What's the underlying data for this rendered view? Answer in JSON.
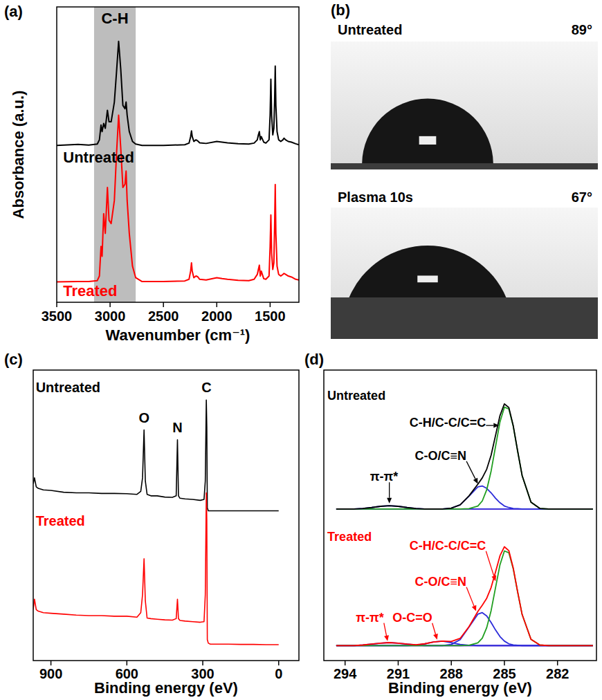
{
  "chart_data": [
    {
      "type": "line",
      "panel_label": "(a)",
      "x_label": "Wavenumber (cm⁻¹)",
      "y_label": "Absorbance (a.u.)",
      "x": [
        3500,
        3300,
        3200,
        3120,
        3100,
        3085,
        3075,
        3060,
        3045,
        3025,
        3010,
        2990,
        2960,
        2940,
        2920,
        2900,
        2880,
        2860,
        2850,
        2840,
        2820,
        2790,
        2760,
        2700,
        2500,
        2300,
        2260,
        2245,
        2237,
        2230,
        2215,
        2195,
        2180,
        2160,
        2100,
        2000,
        1950,
        1900,
        1800,
        1700,
        1650,
        1620,
        1610,
        1601,
        1592,
        1583,
        1560,
        1540,
        1510,
        1500,
        1493,
        1486,
        1475,
        1465,
        1458,
        1452,
        1446,
        1435,
        1420,
        1400,
        1380,
        1370,
        1355,
        1330,
        1300,
        1260,
        1230
      ],
      "series": [
        {
          "color": "#000000",
          "values": [
            6.28,
            6.31,
            6.29,
            6.32,
            6.45,
            6.9,
            6.7,
            6.95,
            6.8,
            7.35,
            7.0,
            7.0,
            7.6,
            8.5,
            9.45,
            8.6,
            7.5,
            7.4,
            7.6,
            7.2,
            6.7,
            6.4,
            6.32,
            6.28,
            6.28,
            6.3,
            6.35,
            6.55,
            6.72,
            6.55,
            6.4,
            6.45,
            6.42,
            6.36,
            6.34,
            6.4,
            6.38,
            6.36,
            6.33,
            6.32,
            6.35,
            6.45,
            6.6,
            6.7,
            6.45,
            6.55,
            6.38,
            6.35,
            6.45,
            7.2,
            8.3,
            7.2,
            6.6,
            6.8,
            7.6,
            8.7,
            7.5,
            6.7,
            6.45,
            6.4,
            6.45,
            6.5,
            6.45,
            6.4,
            6.38,
            6.33,
            6.3
          ]
        },
        {
          "color": "#ff0000",
          "values": [
            2.12,
            2.13,
            2.13,
            2.16,
            2.3,
            3.2,
            2.9,
            4.2,
            3.6,
            5.0,
            4.0,
            3.9,
            4.6,
            6.0,
            7.2,
            6.2,
            5.0,
            5.1,
            5.5,
            4.6,
            3.6,
            2.6,
            2.25,
            2.13,
            2.13,
            2.15,
            2.2,
            2.45,
            2.7,
            2.45,
            2.25,
            2.3,
            2.28,
            2.2,
            2.18,
            2.25,
            2.22,
            2.2,
            2.17,
            2.16,
            2.2,
            2.35,
            2.5,
            2.63,
            2.3,
            2.45,
            2.22,
            2.2,
            2.3,
            3.2,
            4.16,
            3.0,
            2.5,
            2.7,
            3.8,
            5.09,
            3.6,
            2.6,
            2.35,
            2.3,
            2.35,
            2.38,
            2.35,
            2.3,
            2.27,
            2.2,
            2.18
          ]
        }
      ],
      "xlim": [
        3500,
        1230
      ],
      "xticks": [
        3500,
        3000,
        2500,
        2000,
        1500
      ],
      "ylim": [
        1.5,
        10.5
      ],
      "tick_labels": "x",
      "highlight": {
        "from": 3150,
        "to": 2760,
        "label": "C-H"
      },
      "annotations": [
        {
          "text": "Untreated",
          "x": 3440,
          "y": 5.75,
          "color": "#000000"
        },
        {
          "text": "Treated",
          "x": 3440,
          "y": 1.68,
          "color": "#ff0000"
        }
      ]
    },
    {
      "type": "photo",
      "panel_label": "(b)",
      "images": [
        {
          "label": "Untreated",
          "contact_angle": 89,
          "contact_angle_label": "89°"
        },
        {
          "label": "Plasma 10s",
          "contact_angle": 67,
          "contact_angle_label": "67°"
        }
      ]
    },
    {
      "type": "line",
      "panel_label": "(c)",
      "x_label": "Binding energy (eV)",
      "x": [
        970,
        965,
        958,
        950,
        930,
        900,
        850,
        800,
        750,
        700,
        650,
        600,
        560,
        545,
        538,
        532,
        527,
        520,
        505,
        480,
        450,
        420,
        405,
        400,
        396,
        390,
        370,
        340,
        310,
        295,
        290,
        286,
        284,
        282,
        278,
        270,
        250,
        200,
        150,
        100,
        50,
        0
      ],
      "series": [
        {
          "color": "#000000",
          "values": [
            6.4,
            6.6,
            6.3,
            6.25,
            6.2,
            6.18,
            6.12,
            6.1,
            6.1,
            6.08,
            6.08,
            6.07,
            6.05,
            6.15,
            6.6,
            8.2,
            6.5,
            6.05,
            6.0,
            6.0,
            5.96,
            5.95,
            6.0,
            7.87,
            6.0,
            5.92,
            5.9,
            5.88,
            5.85,
            5.88,
            6.5,
            9.2,
            8.3,
            5.6,
            5.5,
            5.5,
            5.5,
            5.5,
            5.5,
            5.5,
            5.5,
            5.5
          ]
        },
        {
          "color": "#ff0000",
          "values": [
            2.2,
            2.55,
            2.2,
            2.15,
            2.1,
            2.08,
            2.05,
            2.02,
            2.0,
            2.0,
            1.98,
            1.98,
            1.95,
            2.1,
            2.7,
            3.9,
            2.5,
            1.92,
            1.9,
            1.88,
            1.86,
            1.85,
            1.9,
            2.55,
            1.9,
            1.84,
            1.82,
            1.8,
            1.78,
            1.8,
            2.7,
            6.1,
            5.2,
            1.2,
            1.08,
            1.05,
            1.05,
            1.05,
            1.04,
            1.04,
            1.03,
            1.03
          ]
        }
      ],
      "xlim": [
        970,
        -80
      ],
      "xticks": [
        900,
        600,
        300,
        0
      ],
      "ylim": [
        0.5,
        10.2
      ],
      "tick_labels": "x",
      "peak_labels": [
        {
          "x": 532,
          "y": 8.45,
          "label": "O"
        },
        {
          "x": 400,
          "y": 8.12,
          "label": "N"
        },
        {
          "x": 285,
          "y": 9.45,
          "label": "C"
        }
      ],
      "annotations": [
        {
          "text": "Untreated",
          "x": 960,
          "y": 9.45,
          "color": "#000000"
        },
        {
          "text": "Treated",
          "x": 960,
          "y": 5.0,
          "color": "#ff0000"
        }
      ]
    },
    {
      "type": "line",
      "panel_label": "(d)",
      "x_label": "Binding energy (eV)",
      "x": [
        294.5,
        294,
        293.5,
        293,
        292.5,
        292,
        291.5,
        291,
        290.5,
        290,
        289.5,
        289,
        288.5,
        288,
        287.5,
        287,
        286.5,
        286.25,
        286,
        285.75,
        285.5,
        285.25,
        285,
        284.75,
        284.5,
        284.25,
        284,
        283.5,
        283,
        282.5,
        282,
        281.5,
        281,
        280.5,
        280
      ],
      "series": [
        {
          "color": "#cc33cc",
          "values": [
            5.56,
            5.56,
            5.56,
            5.56,
            5.56,
            5.56,
            5.56,
            5.56,
            5.56,
            5.56,
            5.56,
            5.56,
            5.56,
            5.56,
            5.56,
            5.56,
            5.56,
            5.56,
            5.56,
            5.56,
            5.56,
            5.56,
            5.56,
            5.56,
            5.56,
            5.56,
            5.56,
            5.56,
            5.56,
            5.56,
            5.56,
            5.56,
            5.56,
            5.56,
            5.56
          ]
        },
        {
          "color": "#2b2bd9",
          "values": [
            5.56,
            5.56,
            5.56,
            5.58,
            5.61,
            5.65,
            5.67,
            5.65,
            5.61,
            5.58,
            5.56,
            5.56,
            5.56,
            5.56,
            5.56,
            5.56,
            5.56,
            5.56,
            5.56,
            5.56,
            5.56,
            5.56,
            5.56,
            5.56,
            5.56,
            5.56,
            5.56,
            5.56,
            5.56,
            5.56,
            5.56,
            5.56,
            5.56,
            5.56,
            5.56
          ]
        },
        {
          "color": "#2b2bd9",
          "values": [
            5.56,
            5.56,
            5.56,
            5.56,
            5.56,
            5.56,
            5.56,
            5.56,
            5.56,
            5.56,
            5.56,
            5.56,
            5.56,
            5.59,
            5.7,
            5.99,
            6.3,
            6.33,
            6.25,
            6.1,
            5.92,
            5.77,
            5.66,
            5.61,
            5.58,
            5.57,
            5.56,
            5.56,
            5.56,
            5.56,
            5.56,
            5.56,
            5.56,
            5.56,
            5.56
          ]
        },
        {
          "color": "#1f9e1f",
          "values": [
            5.56,
            5.56,
            5.56,
            5.56,
            5.56,
            5.56,
            5.56,
            5.56,
            5.56,
            5.56,
            5.56,
            5.56,
            5.56,
            5.56,
            5.56,
            5.57,
            5.66,
            5.83,
            6.2,
            6.83,
            7.65,
            8.47,
            8.96,
            8.9,
            8.32,
            7.48,
            6.68,
            5.79,
            5.58,
            5.56,
            5.56,
            5.56,
            5.56,
            5.56,
            5.56
          ]
        },
        {
          "color": "#000000",
          "values": [
            5.56,
            5.56,
            5.56,
            5.58,
            5.61,
            5.65,
            5.67,
            5.65,
            5.61,
            5.58,
            5.56,
            5.56,
            5.56,
            5.59,
            5.7,
            6.0,
            6.39,
            6.6,
            6.89,
            7.36,
            8.02,
            8.68,
            9.07,
            8.95,
            8.34,
            7.49,
            6.68,
            5.79,
            5.58,
            5.56,
            5.56,
            5.56,
            5.56,
            5.56,
            5.56
          ]
        },
        {
          "color": "#cc33cc",
          "values": [
            1.0,
            1.0,
            1.0,
            1.0,
            1.0,
            1.0,
            1.0,
            1.0,
            1.0,
            1.0,
            1.0,
            1.0,
            1.0,
            1.0,
            1.0,
            1.0,
            1.0,
            1.0,
            1.0,
            1.0,
            1.0,
            1.0,
            1.0,
            1.0,
            1.0,
            1.0,
            1.0,
            1.0,
            1.0,
            1.0,
            1.0,
            1.0,
            1.0,
            1.0,
            1.0
          ]
        },
        {
          "color": "#2b2bd9",
          "values": [
            1.0,
            1.0,
            1.0,
            1.02,
            1.05,
            1.08,
            1.1,
            1.08,
            1.05,
            1.02,
            1.0,
            1.0,
            1.0,
            1.0,
            1.0,
            1.0,
            1.0,
            1.0,
            1.0,
            1.0,
            1.0,
            1.0,
            1.0,
            1.0,
            1.0,
            1.0,
            1.0,
            1.0,
            1.0,
            1.0,
            1.0,
            1.0,
            1.0,
            1.0,
            1.0
          ]
        },
        {
          "color": "#2b2bd9",
          "values": [
            1.0,
            1.0,
            1.0,
            1.0,
            1.0,
            1.0,
            1.0,
            1.0,
            1.0,
            1.01,
            1.06,
            1.12,
            1.15,
            1.1,
            1.04,
            1.01,
            1.0,
            1.0,
            1.0,
            1.0,
            1.0,
            1.0,
            1.0,
            1.0,
            1.0,
            1.0,
            1.0,
            1.0,
            1.0,
            1.0,
            1.0,
            1.0,
            1.0,
            1.0,
            1.0
          ]
        },
        {
          "color": "#2b2bd9",
          "values": [
            1.0,
            1.0,
            1.0,
            1.0,
            1.0,
            1.0,
            1.0,
            1.0,
            1.0,
            1.0,
            1.0,
            1.0,
            1.0,
            1.04,
            1.2,
            1.62,
            2.05,
            2.1,
            1.99,
            1.77,
            1.52,
            1.3,
            1.15,
            1.06,
            1.02,
            1.01,
            1.0,
            1.0,
            1.0,
            1.0,
            1.0,
            1.0,
            1.0,
            1.0,
            1.0
          ]
        },
        {
          "color": "#1f9e1f",
          "values": [
            1.0,
            1.0,
            1.0,
            1.0,
            1.0,
            1.0,
            1.0,
            1.0,
            1.0,
            1.0,
            1.0,
            1.0,
            1.0,
            1.0,
            1.0,
            1.01,
            1.09,
            1.25,
            1.6,
            2.17,
            2.94,
            3.7,
            4.16,
            4.1,
            3.56,
            2.78,
            2.04,
            1.21,
            1.02,
            1.0,
            1.0,
            1.0,
            1.0,
            1.0,
            1.0
          ]
        },
        {
          "color": "#ff0000",
          "values": [
            1.0,
            1.0,
            1.0,
            1.02,
            1.05,
            1.08,
            1.1,
            1.08,
            1.05,
            1.03,
            1.06,
            1.12,
            1.15,
            1.14,
            1.24,
            1.63,
            2.14,
            2.35,
            2.58,
            2.94,
            3.46,
            4.0,
            4.3,
            4.17,
            3.59,
            2.79,
            2.04,
            1.21,
            1.02,
            1.0,
            1.0,
            1.0,
            1.0,
            1.0,
            1.0
          ]
        }
      ],
      "xlim": [
        295.2,
        279.8
      ],
      "xticks": [
        294,
        291,
        288,
        285,
        282
      ],
      "ylim": [
        0.5,
        10.2
      ],
      "tick_labels": "x",
      "annotations": [
        {
          "text": "Untreated",
          "x": 295.0,
          "y": 9.2,
          "color": "#000000"
        },
        {
          "text": "C-H/C-C/C=C",
          "x": 288.2,
          "y": 8.3,
          "color": "#000000",
          "arrow_to": [
            285.3,
            8.35
          ]
        },
        {
          "text": "C-O/C≡N",
          "x": 288.6,
          "y": 7.2,
          "color": "#000000",
          "arrow_to": [
            286.5,
            6.4
          ]
        },
        {
          "text": "π-π*",
          "x": 291.8,
          "y": 6.5,
          "color": "#000000",
          "arrow_to": [
            291.5,
            5.75
          ]
        },
        {
          "text": "Treated",
          "x": 295.0,
          "y": 4.5,
          "color": "#ff0000"
        },
        {
          "text": "C-H/C-C/C=C",
          "x": 288.2,
          "y": 4.2,
          "color": "#ff0000",
          "arrow_to": [
            285.5,
            3.15
          ]
        },
        {
          "text": "C-O/C≡N",
          "x": 288.6,
          "y": 3.0,
          "color": "#ff0000",
          "arrow_to": [
            286.6,
            2.15
          ]
        },
        {
          "text": "π-π*",
          "x": 292.6,
          "y": 1.8,
          "color": "#ff0000",
          "arrow_to": [
            291.6,
            1.15
          ]
        },
        {
          "text": "O-C=O",
          "x": 290.2,
          "y": 1.8,
          "color": "#ff0000",
          "arrow_to": [
            288.8,
            1.2
          ]
        }
      ]
    }
  ]
}
